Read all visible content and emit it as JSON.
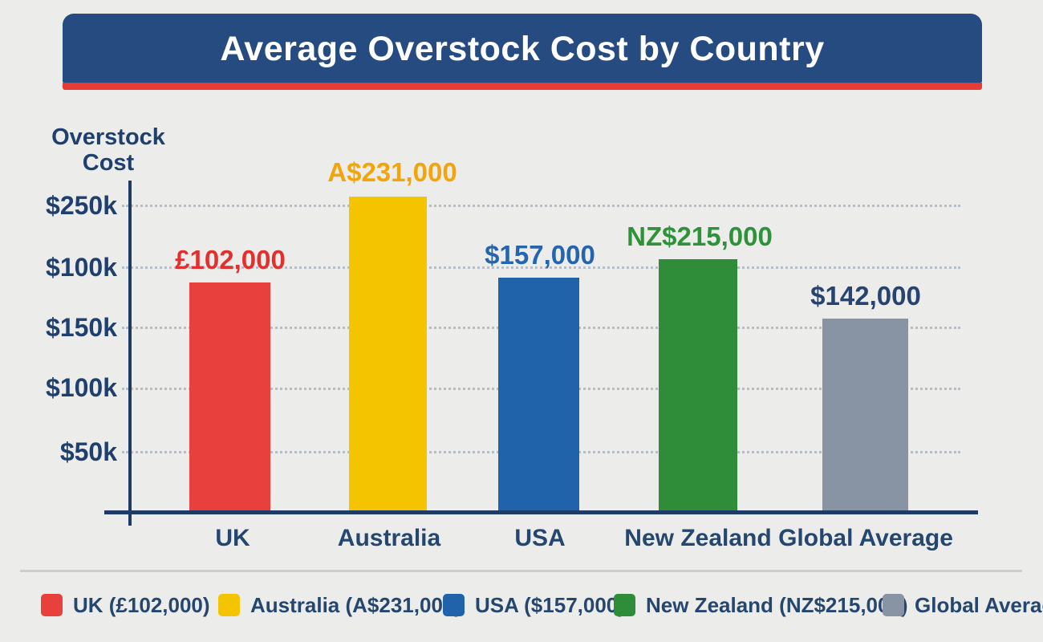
{
  "title": "Average Overstock Cost by Country",
  "y_axis": {
    "label_line1": "Overstock",
    "label_line2": "Cost"
  },
  "chart_data": {
    "type": "bar",
    "title": "Average Overstock Cost by Country",
    "ylabel": "Overstock Cost",
    "y_tick_labels": [
      "$250k",
      "$100k",
      "$150k",
      "$100k",
      "$50k"
    ],
    "categories": [
      "UK",
      "Australia",
      "USA",
      "New Zealand",
      "Global Average"
    ],
    "values": [
      102000,
      231000,
      157000,
      215000,
      142000
    ],
    "value_labels": [
      "£102,000",
      "A$231,000",
      "$157,000",
      "NZ$215,000",
      "$142,000"
    ],
    "series_colors": [
      "#e8403d",
      "#f5c400",
      "#2163ab",
      "#2f8d39",
      "#8894a3"
    ],
    "value_label_colors": [
      "#e42f2f",
      "#f2a50a",
      "#2565ae",
      "#2f9139",
      "#27436f"
    ],
    "grid": "horizontal-dotted",
    "legend_position": "bottom"
  },
  "legend": {
    "items": [
      {
        "label": "UK (£102,000)",
        "color": "#e8403d"
      },
      {
        "label": "Australia (A$231,000)",
        "color": "#f5c400"
      },
      {
        "label": "USA ($157,000)",
        "color": "#2163ab"
      },
      {
        "label": "New Zealand (NZ$215,000)",
        "color": "#2f8d39"
      },
      {
        "label": "Global Average",
        "color": "#8894a3"
      }
    ]
  },
  "colors": {
    "banner": "#254b80",
    "banner_accent": "#e63c38",
    "background": "#ecedea",
    "text": "#1f3f6e"
  }
}
